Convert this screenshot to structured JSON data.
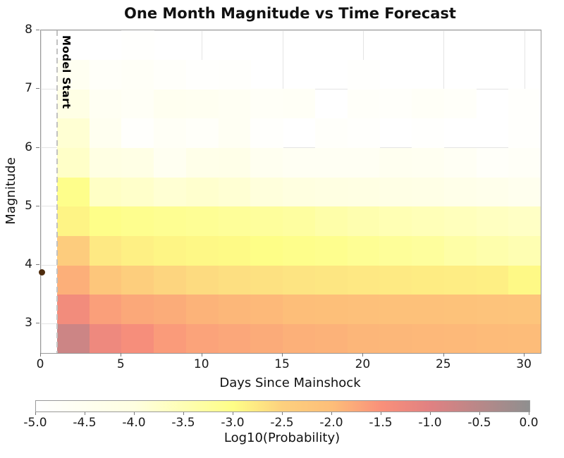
{
  "title": "One Month Magnitude vs Time Forecast",
  "chart_data": {
    "type": "heatmap",
    "title": "One Month Magnitude vs Time Forecast",
    "xlabel": "Days Since Mainshock",
    "ylabel": "Magnitude",
    "xlim": [
      0,
      31
    ],
    "ylim": [
      2.5,
      8
    ],
    "grid": true,
    "x_ticks": [
      0,
      5,
      10,
      15,
      20,
      25,
      30
    ],
    "x_tick_labels": [
      "0",
      "5",
      "10",
      "15",
      "20",
      "25",
      "30"
    ],
    "y_ticks": [
      3,
      4,
      5,
      6,
      7,
      8
    ],
    "y_tick_labels": [
      "3",
      "4",
      "5",
      "6",
      "7",
      "8"
    ],
    "day_bin_edges": [
      1,
      3,
      5,
      7,
      9,
      11,
      13,
      15,
      17,
      19,
      21,
      23,
      25,
      27,
      29,
      31
    ],
    "magnitude_bin_edges": [
      2.5,
      3.0,
      3.5,
      4.0,
      4.5,
      5.0,
      5.5,
      6.0,
      6.5,
      7.0,
      7.5,
      8.0
    ],
    "values_note": "log10 probability per cell; rows ordered from lowest magnitude bin (2.5-3.0) to highest (7.5-8.0); columns ordered by day bin (1-3 ... 29-31); values at or below -5 render as blank/white",
    "log10_probability": [
      [
        -0.75,
        -1.27,
        -1.44,
        -1.62,
        -1.71,
        -1.75,
        -1.79,
        -1.85,
        -1.87,
        -1.91,
        -1.92,
        -1.94,
        -1.95,
        -1.97,
        -1.98
      ],
      [
        -1.35,
        -1.66,
        -1.76,
        -1.8,
        -1.88,
        -1.92,
        -1.95,
        -2.0,
        -2.03,
        -2.05,
        -2.07,
        -2.09,
        -2.12,
        -2.15,
        -2.17
      ],
      [
        -1.84,
        -2.22,
        -2.44,
        -2.55,
        -2.62,
        -2.66,
        -2.69,
        -2.72,
        -2.74,
        -2.76,
        -2.78,
        -2.8,
        -2.82,
        -2.84,
        -2.95
      ],
      [
        -2.39,
        -2.77,
        -2.85,
        -2.9,
        -2.93,
        -2.96,
        -3.0,
        -3.05,
        -3.08,
        -3.15,
        -3.2,
        -3.25,
        -3.35,
        -3.42,
        -3.48
      ],
      [
        -2.89,
        -3.02,
        -3.08,
        -3.12,
        -3.16,
        -3.2,
        -3.24,
        -3.28,
        -3.38,
        -3.45,
        -3.5,
        -3.55,
        -3.6,
        -3.65,
        -3.7
      ],
      [
        -3.05,
        -3.7,
        -3.75,
        -3.85,
        -3.8,
        -3.85,
        -3.95,
        -4.0,
        -4.05,
        -4.1,
        -4.15,
        -4.2,
        -4.3,
        -4.35,
        -4.45
      ],
      [
        -3.73,
        -4.1,
        -4.15,
        -4.55,
        -4.3,
        -4.25,
        -4.5,
        -4.6,
        -4.62,
        -4.6,
        -4.5,
        -4.55,
        -4.65,
        -4.8,
        -4.75
      ],
      [
        -3.85,
        -4.5,
        -4.9,
        -4.7,
        -4.8,
        -4.6,
        -4.9,
        -5.0,
        -4.85,
        -4.9,
        -5.0,
        -4.95,
        -5.0,
        -5.0,
        -4.9
      ],
      [
        -4.15,
        -4.6,
        -4.7,
        -4.5,
        -4.55,
        -4.6,
        -4.75,
        -4.7,
        -5.0,
        -4.8,
        -4.85,
        -4.75,
        -4.8,
        -5.1,
        -4.9
      ],
      [
        -4.55,
        -4.8,
        -4.75,
        -4.85,
        -4.95,
        -4.9,
        -5.2,
        -5.0,
        -5.1,
        -4.95,
        -5.2,
        -5.1,
        -5.05,
        -5.3,
        -5.2
      ],
      [
        -5.1,
        -5.3,
        -4.95,
        -5.4,
        -5.2,
        -5.5,
        -5.3,
        -5.1,
        -5.6,
        -5.4,
        -5.2,
        -5.5,
        -5.6,
        -5.3,
        -5.4
      ]
    ],
    "colorbar": {
      "label": "Log10(Probability)",
      "range": [
        -5,
        0
      ],
      "ticks": [
        -5.0,
        -4.5,
        -4.0,
        -3.5,
        -3.0,
        -2.5,
        -2.0,
        -1.5,
        -1.0,
        -0.5,
        0.0
      ],
      "tick_labels": [
        "-5.0",
        "-4.5",
        "-4.0",
        "-3.5",
        "-3.0",
        "-2.5",
        "-2.0",
        "-1.5",
        "-1.0",
        "-0.5",
        "0.0"
      ],
      "colormap_stops": [
        {
          "value": -5.0,
          "color": "#ffffff"
        },
        {
          "value": -4.0,
          "color": "#ffffe0"
        },
        {
          "value": -3.0,
          "color": "#fefe87"
        },
        {
          "value": -2.5,
          "color": "#fdd07e"
        },
        {
          "value": -2.0,
          "color": "#fdbe79"
        },
        {
          "value": -1.5,
          "color": "#f9907a"
        },
        {
          "value": -1.0,
          "color": "#e08182"
        },
        {
          "value": 0.0,
          "color": "#8f8f8f"
        }
      ]
    },
    "annotations": {
      "model_start": {
        "label": "Model Start",
        "day": 1,
        "line_color": "#c2c2c2"
      },
      "mainshock": {
        "day": 0,
        "magnitude": 3.87,
        "color": "#4e2c0e"
      }
    },
    "grid_color": "#e4e4e4"
  }
}
